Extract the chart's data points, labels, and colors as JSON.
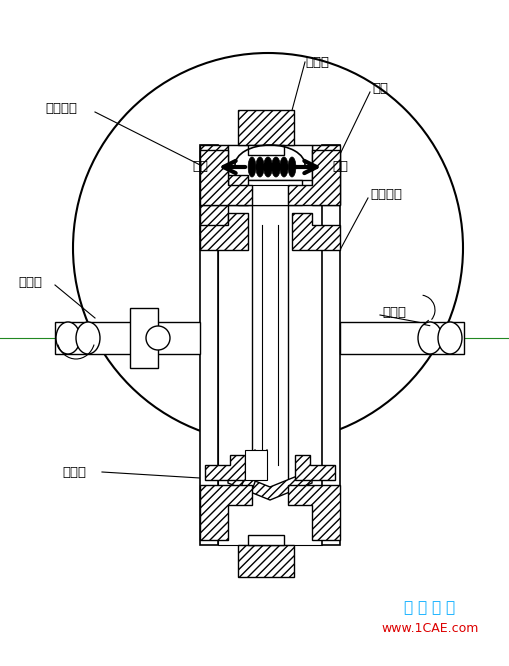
{
  "bg_color": "#ffffff",
  "fig_width": 5.09,
  "fig_height": 6.66,
  "dpi": 100,
  "watermark_line1": "仿 真 在 线",
  "watermark_line2": "www.1CAE.com",
  "watermark_color1": "#00aaff",
  "watermark_color2": "#dd0000",
  "labels": {
    "diaosuhuān": "调速环",
    "zhuīlún": "锥轮",
    "shūrùyuánpán": "输入圆盘",
    "shūrùzhóu": "输入轴",
    "jiāyādié": "加压盘",
    "shūchūzhóu": "输出轴",
    "shūchūyuánpán": "输出圆盘",
    "dīsù": "低速",
    "gāosù": "高速"
  },
  "line_color": "#000000"
}
